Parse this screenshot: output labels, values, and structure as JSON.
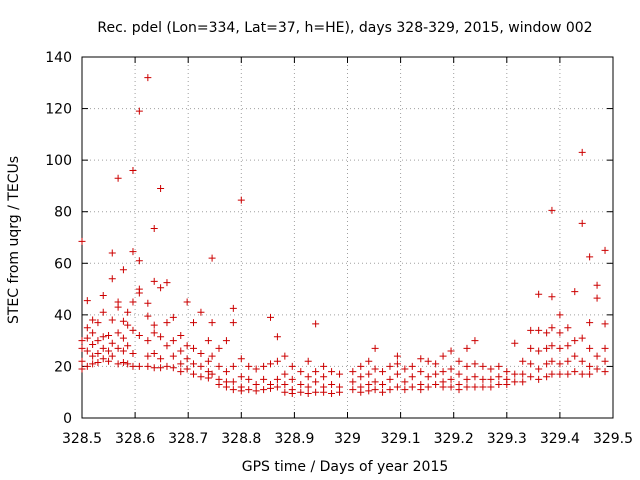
{
  "chart_data": {
    "type": "scatter",
    "title": "Rec. pdel (Lon=334, Lat=37, h=HE), days 328-329, 2015, window 002",
    "xlabel": "GPS time / Days of year 2015",
    "ylabel": "STEC from uqrg / TECUs",
    "xlim": [
      328.5,
      329.5
    ],
    "ylim": [
      0,
      140
    ],
    "xticks": [
      328.5,
      328.6,
      328.7,
      328.8,
      328.9,
      329,
      329.1,
      329.2,
      329.3,
      329.4,
      329.5
    ],
    "xtick_labels": [
      "328.5",
      "328.6",
      "328.7",
      "328.8",
      "328.9",
      "329",
      "329.1",
      "329.2",
      "329.3",
      "329.4",
      "329.5"
    ],
    "yticks": [
      0,
      20,
      40,
      60,
      80,
      100,
      120,
      140
    ],
    "ytick_labels": [
      "0",
      "20",
      "40",
      "60",
      "80",
      "100",
      "120",
      "140"
    ],
    "grid": true,
    "marker": "plus",
    "color": "#cc0000",
    "series": [
      {
        "points": [
          [
            328.5,
            68.5
          ],
          [
            328.5,
            30.0
          ],
          [
            328.5,
            27.0
          ],
          [
            328.5,
            22.0
          ],
          [
            328.5,
            19.0
          ],
          [
            328.51,
            45.5
          ],
          [
            328.51,
            35.0
          ],
          [
            328.51,
            31.0
          ],
          [
            328.51,
            26.0
          ],
          [
            328.51,
            20.0
          ],
          [
            328.52,
            38.0
          ],
          [
            328.52,
            33.0
          ],
          [
            328.52,
            28.5
          ],
          [
            328.52,
            24.0
          ],
          [
            328.52,
            21.0
          ],
          [
            328.53,
            37.0
          ],
          [
            328.53,
            30.0
          ],
          [
            328.53,
            25.0
          ],
          [
            328.53,
            21.5
          ],
          [
            328.54,
            47.5
          ],
          [
            328.54,
            41.0
          ],
          [
            328.54,
            31.5
          ],
          [
            328.54,
            27.0
          ],
          [
            328.54,
            23.0
          ],
          [
            328.55,
            32.0
          ],
          [
            328.55,
            26.0
          ],
          [
            328.55,
            22.0
          ],
          [
            328.557,
            64.0
          ],
          [
            328.557,
            54.0
          ],
          [
            328.557,
            38.0
          ],
          [
            328.557,
            29.0
          ],
          [
            328.557,
            24.0
          ],
          [
            328.568,
            93.0
          ],
          [
            328.568,
            45.0
          ],
          [
            328.568,
            43.0
          ],
          [
            328.568,
            33.0
          ],
          [
            328.568,
            27.0
          ],
          [
            328.568,
            21.0
          ],
          [
            328.578,
            57.5
          ],
          [
            328.578,
            37.5
          ],
          [
            328.578,
            31.0
          ],
          [
            328.578,
            26.0
          ],
          [
            328.578,
            21.5
          ],
          [
            328.586,
            41.0
          ],
          [
            328.586,
            36.0
          ],
          [
            328.586,
            28.0
          ],
          [
            328.586,
            21.0
          ],
          [
            328.596,
            96.0
          ],
          [
            328.596,
            64.5
          ],
          [
            328.596,
            45.0
          ],
          [
            328.596,
            34.0
          ],
          [
            328.596,
            25.0
          ],
          [
            328.596,
            20.0
          ],
          [
            328.608,
            119.0
          ],
          [
            328.608,
            61.0
          ],
          [
            328.608,
            50.0
          ],
          [
            328.608,
            48.5
          ],
          [
            328.608,
            32.0
          ],
          [
            328.608,
            20.0
          ],
          [
            328.624,
            132.0
          ],
          [
            328.624,
            44.5
          ],
          [
            328.624,
            39.5
          ],
          [
            328.624,
            30.0
          ],
          [
            328.624,
            24.0
          ],
          [
            328.624,
            20.0
          ],
          [
            328.636,
            73.5
          ],
          [
            328.636,
            53.0
          ],
          [
            328.636,
            36.0
          ],
          [
            328.636,
            33.0
          ],
          [
            328.636,
            25.0
          ],
          [
            328.636,
            19.5
          ],
          [
            328.648,
            89.0
          ],
          [
            328.648,
            50.5
          ],
          [
            328.648,
            31.5
          ],
          [
            328.648,
            23.0
          ],
          [
            328.648,
            19.5
          ],
          [
            328.66,
            52.5
          ],
          [
            328.66,
            37.0
          ],
          [
            328.66,
            28.0
          ],
          [
            328.66,
            20.0
          ],
          [
            328.672,
            39.0
          ],
          [
            328.672,
            30.0
          ],
          [
            328.672,
            24.0
          ],
          [
            328.672,
            19.5
          ],
          [
            328.686,
            32.0
          ],
          [
            328.686,
            26.0
          ],
          [
            328.686,
            21.0
          ],
          [
            328.686,
            18.0
          ],
          [
            328.698,
            45.0
          ],
          [
            328.698,
            28.0
          ],
          [
            328.698,
            23.0
          ],
          [
            328.698,
            19.0
          ],
          [
            328.71,
            37.0
          ],
          [
            328.71,
            27.0
          ],
          [
            328.71,
            21.0
          ],
          [
            328.71,
            17.0
          ],
          [
            328.724,
            41.0
          ],
          [
            328.724,
            25.0
          ],
          [
            328.724,
            20.0
          ],
          [
            328.724,
            16.0
          ],
          [
            328.738,
            30.0
          ],
          [
            328.738,
            22.0
          ],
          [
            328.738,
            18.0
          ],
          [
            328.738,
            15.5
          ],
          [
            328.745,
            62.0
          ],
          [
            328.745,
            37.0
          ],
          [
            328.745,
            24.0
          ],
          [
            328.745,
            17.0
          ],
          [
            328.758,
            27.0
          ],
          [
            328.758,
            20.0
          ],
          [
            328.758,
            15.0
          ],
          [
            328.758,
            13.0
          ],
          [
            328.772,
            30.0
          ],
          [
            328.772,
            18.0
          ],
          [
            328.772,
            14.0
          ],
          [
            328.772,
            12.0
          ],
          [
            328.785,
            42.5
          ],
          [
            328.785,
            37.0
          ],
          [
            328.785,
            20.0
          ],
          [
            328.785,
            14.0
          ],
          [
            328.785,
            11.0
          ],
          [
            328.8,
            84.5
          ],
          [
            328.8,
            23.0
          ],
          [
            328.8,
            16.0
          ],
          [
            328.8,
            12.0
          ],
          [
            328.8,
            10.5
          ],
          [
            328.814,
            20.0
          ],
          [
            328.814,
            15.0
          ],
          [
            328.814,
            11.0
          ],
          [
            328.828,
            19.0
          ],
          [
            328.828,
            13.0
          ],
          [
            328.828,
            10.5
          ],
          [
            328.842,
            20.0
          ],
          [
            328.842,
            15.0
          ],
          [
            328.842,
            11.0
          ],
          [
            328.855,
            39.0
          ],
          [
            328.855,
            21.0
          ],
          [
            328.855,
            13.0
          ],
          [
            328.855,
            11.5
          ],
          [
            328.868,
            31.5
          ],
          [
            328.868,
            22.0
          ],
          [
            328.868,
            15.0
          ],
          [
            328.868,
            12.0
          ],
          [
            328.882,
            24.0
          ],
          [
            328.882,
            17.0
          ],
          [
            328.882,
            13.0
          ],
          [
            328.882,
            10.0
          ],
          [
            328.896,
            20.0
          ],
          [
            328.896,
            15.0
          ],
          [
            328.896,
            11.0
          ],
          [
            328.896,
            9.5
          ],
          [
            328.912,
            18.0
          ],
          [
            328.912,
            13.0
          ],
          [
            328.912,
            10.0
          ],
          [
            328.926,
            22.0
          ],
          [
            328.926,
            16.0
          ],
          [
            328.926,
            12.0
          ],
          [
            328.926,
            9.5
          ],
          [
            328.94,
            36.5
          ],
          [
            328.94,
            18.0
          ],
          [
            328.94,
            14.0
          ],
          [
            328.94,
            10.0
          ],
          [
            328.955,
            20.0
          ],
          [
            328.955,
            16.0
          ],
          [
            328.955,
            12.0
          ],
          [
            328.955,
            10.0
          ],
          [
            328.97,
            18.0
          ],
          [
            328.97,
            13.0
          ],
          [
            328.97,
            9.5
          ],
          [
            328.985,
            17.0
          ],
          [
            328.985,
            12.0
          ],
          [
            328.985,
            10.0
          ],
          [
            329.01,
            18.0
          ],
          [
            329.01,
            14.0
          ],
          [
            329.01,
            11.0
          ],
          [
            329.025,
            20.0
          ],
          [
            329.025,
            16.0
          ],
          [
            329.025,
            12.0
          ],
          [
            329.025,
            10.0
          ],
          [
            329.04,
            22.0
          ],
          [
            329.04,
            17.0
          ],
          [
            329.04,
            13.0
          ],
          [
            329.04,
            10.5
          ],
          [
            329.052,
            27.0
          ],
          [
            329.052,
            19.0
          ],
          [
            329.052,
            14.0
          ],
          [
            329.052,
            11.0
          ],
          [
            329.066,
            18.0
          ],
          [
            329.066,
            13.0
          ],
          [
            329.066,
            10.0
          ],
          [
            329.08,
            20.0
          ],
          [
            329.08,
            15.0
          ],
          [
            329.08,
            11.0
          ],
          [
            329.094,
            24.0
          ],
          [
            329.094,
            21.0
          ],
          [
            329.094,
            17.0
          ],
          [
            329.094,
            12.0
          ],
          [
            329.108,
            19.0
          ],
          [
            329.108,
            14.0
          ],
          [
            329.108,
            11.0
          ],
          [
            329.122,
            20.0
          ],
          [
            329.122,
            16.0
          ],
          [
            329.122,
            12.0
          ],
          [
            329.138,
            23.0
          ],
          [
            329.138,
            18.0
          ],
          [
            329.138,
            13.0
          ],
          [
            329.138,
            11.0
          ],
          [
            329.152,
            22.0
          ],
          [
            329.152,
            16.0
          ],
          [
            329.152,
            12.0
          ],
          [
            329.166,
            21.0
          ],
          [
            329.166,
            17.0
          ],
          [
            329.166,
            13.0
          ],
          [
            329.18,
            24.0
          ],
          [
            329.18,
            18.0
          ],
          [
            329.18,
            14.0
          ],
          [
            329.18,
            12.0
          ],
          [
            329.195,
            26.0
          ],
          [
            329.195,
            19.0
          ],
          [
            329.195,
            15.0
          ],
          [
            329.195,
            12.0
          ],
          [
            329.21,
            22.0
          ],
          [
            329.21,
            17.0
          ],
          [
            329.21,
            13.0
          ],
          [
            329.21,
            11.0
          ],
          [
            329.225,
            27.0
          ],
          [
            329.225,
            20.0
          ],
          [
            329.225,
            15.0
          ],
          [
            329.225,
            12.0
          ],
          [
            329.24,
            30.0
          ],
          [
            329.24,
            21.0
          ],
          [
            329.24,
            16.0
          ],
          [
            329.24,
            12.0
          ],
          [
            329.255,
            20.0
          ],
          [
            329.255,
            15.0
          ],
          [
            329.255,
            12.0
          ],
          [
            329.27,
            19.0
          ],
          [
            329.27,
            15.0
          ],
          [
            329.27,
            12.0
          ],
          [
            329.285,
            20.0
          ],
          [
            329.285,
            16.0
          ],
          [
            329.285,
            13.0
          ],
          [
            329.3,
            18.0
          ],
          [
            329.3,
            15.0
          ],
          [
            329.3,
            13.0
          ],
          [
            329.315,
            29.0
          ],
          [
            329.315,
            17.0
          ],
          [
            329.315,
            14.0
          ],
          [
            329.33,
            22.0
          ],
          [
            329.33,
            17.0
          ],
          [
            329.33,
            14.0
          ],
          [
            329.345,
            34.0
          ],
          [
            329.345,
            27.0
          ],
          [
            329.345,
            21.0
          ],
          [
            329.345,
            16.0
          ],
          [
            329.36,
            48.0
          ],
          [
            329.36,
            34.0
          ],
          [
            329.36,
            26.0
          ],
          [
            329.36,
            19.0
          ],
          [
            329.36,
            15.0
          ],
          [
            329.375,
            33.0
          ],
          [
            329.375,
            27.0
          ],
          [
            329.375,
            21.0
          ],
          [
            329.375,
            16.0
          ],
          [
            329.385,
            80.5
          ],
          [
            329.385,
            47.0
          ],
          [
            329.385,
            35.0
          ],
          [
            329.385,
            28.0
          ],
          [
            329.385,
            22.0
          ],
          [
            329.385,
            17.0
          ],
          [
            329.4,
            40.0
          ],
          [
            329.4,
            33.0
          ],
          [
            329.4,
            27.0
          ],
          [
            329.4,
            21.0
          ],
          [
            329.4,
            17.0
          ],
          [
            329.415,
            35.0
          ],
          [
            329.415,
            28.0
          ],
          [
            329.415,
            22.0
          ],
          [
            329.415,
            17.0
          ],
          [
            329.428,
            49.0
          ],
          [
            329.428,
            30.0
          ],
          [
            329.428,
            24.0
          ],
          [
            329.428,
            18.0
          ],
          [
            329.442,
            103.0
          ],
          [
            329.442,
            75.5
          ],
          [
            329.442,
            31.0
          ],
          [
            329.442,
            22.0
          ],
          [
            329.442,
            17.0
          ],
          [
            329.456,
            62.5
          ],
          [
            329.456,
            37.0
          ],
          [
            329.456,
            27.0
          ],
          [
            329.456,
            20.0
          ],
          [
            329.456,
            17.0
          ],
          [
            329.47,
            51.5
          ],
          [
            329.47,
            46.5
          ],
          [
            329.47,
            24.0
          ],
          [
            329.47,
            19.0
          ],
          [
            329.485,
            65.0
          ],
          [
            329.485,
            36.5
          ],
          [
            329.485,
            27.0
          ],
          [
            329.485,
            22.0
          ],
          [
            329.485,
            18.0
          ]
        ]
      }
    ]
  }
}
